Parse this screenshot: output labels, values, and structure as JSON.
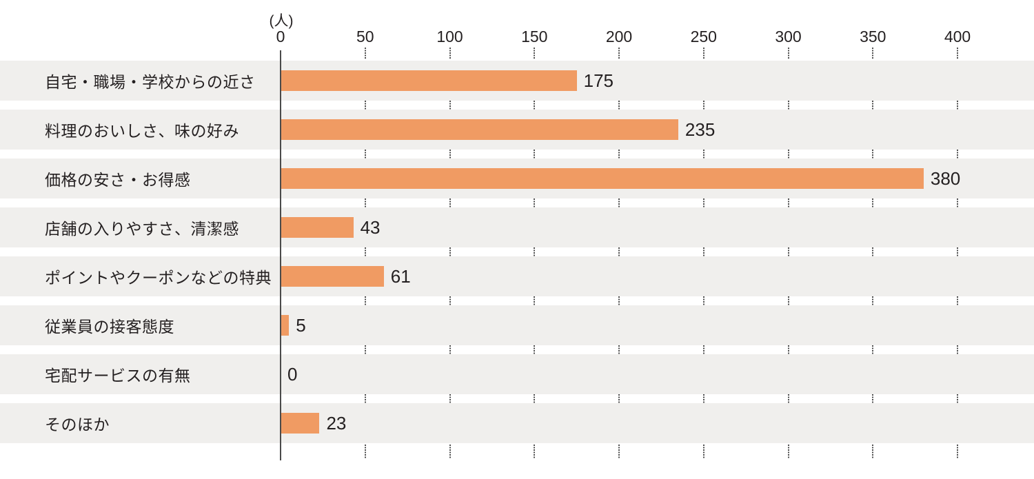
{
  "chart_data": {
    "type": "bar",
    "orientation": "horizontal",
    "title": "",
    "unit_label": "(人)",
    "categories": [
      "自宅・職場・学校からの近さ",
      "料理のおいしさ、味の好み",
      "価格の安さ・お得感",
      "店舗の入りやすさ、清潔感",
      "ポイントやクーポンなどの特典",
      "従業員の接客態度",
      "宅配サービスの有無",
      "そのほか"
    ],
    "values": [
      175,
      235,
      380,
      43,
      61,
      5,
      0,
      23
    ],
    "value_labels": [
      "175",
      "235",
      "380",
      "43",
      "61",
      "5",
      "0",
      "23"
    ],
    "x_ticks": [
      0,
      50,
      100,
      150,
      200,
      250,
      300,
      350,
      400
    ],
    "xlim": [
      0,
      400
    ],
    "legend": null,
    "grid": "dotted vertical tick marks in row gaps",
    "colors": {
      "bar": "#f09b63",
      "row_band": "#f0efed",
      "axis_line": "#4a4a4a",
      "tick_dots": "#4c4c4c",
      "text": "#231f20",
      "background": "#ffffff"
    }
  }
}
